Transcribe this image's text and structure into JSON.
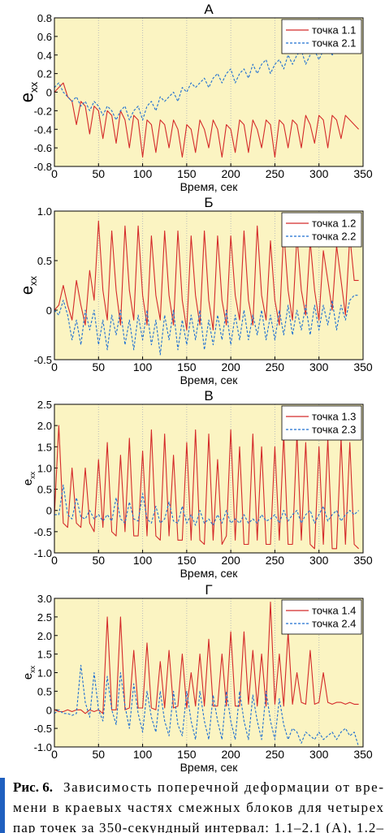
{
  "chart_data": [
    {
      "type": "line",
      "title": "А",
      "xlabel": "Время, сек",
      "ylabel": "e",
      "ylabel_sub": "xx",
      "x": [
        0,
        5,
        10,
        15,
        20,
        25,
        30,
        35,
        40,
        45,
        50,
        55,
        60,
        65,
        70,
        75,
        80,
        85,
        90,
        95,
        100,
        105,
        110,
        115,
        120,
        125,
        130,
        135,
        140,
        145,
        150,
        155,
        160,
        165,
        170,
        175,
        180,
        185,
        190,
        195,
        200,
        205,
        210,
        215,
        220,
        225,
        230,
        235,
        240,
        245,
        250,
        255,
        260,
        265,
        270,
        275,
        280,
        285,
        290,
        295,
        300,
        305,
        310,
        315,
        320,
        325,
        330,
        335,
        340,
        345
      ],
      "xlim": [
        0,
        350
      ],
      "xticks": [
        0,
        50,
        100,
        150,
        200,
        250,
        300,
        350
      ],
      "ylim": [
        -0.8,
        0.8
      ],
      "yticks": [
        -0.8,
        -0.6,
        -0.4,
        -0.2,
        0,
        0.2,
        0.4,
        0.6,
        0.8
      ],
      "grid": "x",
      "legend": "upper right",
      "background": "#fbf4c2",
      "series": [
        {
          "name": "точка 1.1",
          "color": "#d42a2a",
          "style": "solid",
          "values": [
            0.0,
            0.05,
            0.1,
            -0.05,
            -0.1,
            -0.35,
            -0.1,
            -0.15,
            -0.45,
            -0.15,
            -0.2,
            -0.5,
            -0.2,
            -0.25,
            -0.55,
            -0.2,
            -0.3,
            -0.6,
            -0.25,
            -0.3,
            -0.7,
            -0.3,
            -0.35,
            -0.65,
            -0.3,
            -0.35,
            -0.6,
            -0.3,
            -0.4,
            -0.7,
            -0.35,
            -0.4,
            -0.65,
            -0.3,
            -0.4,
            -0.6,
            -0.3,
            -0.4,
            -0.7,
            -0.35,
            -0.4,
            -0.65,
            -0.3,
            -0.35,
            -0.65,
            -0.3,
            -0.4,
            -0.6,
            -0.3,
            -0.35,
            -0.7,
            -0.3,
            -0.35,
            -0.6,
            -0.3,
            -0.35,
            -0.6,
            -0.25,
            -0.35,
            -0.55,
            -0.25,
            -0.3,
            -0.6,
            -0.25,
            -0.3,
            -0.5,
            -0.25,
            -0.3,
            -0.35,
            -0.4
          ]
        },
        {
          "name": "точка 2.1",
          "color": "#1f6fd1",
          "style": "dashed",
          "values": [
            0.05,
            0.1,
            0.0,
            -0.05,
            -0.1,
            -0.05,
            -0.15,
            -0.1,
            -0.2,
            -0.1,
            -0.15,
            -0.25,
            -0.15,
            -0.2,
            -0.3,
            -0.2,
            -0.15,
            -0.3,
            -0.2,
            -0.15,
            -0.3,
            -0.15,
            -0.1,
            -0.2,
            -0.05,
            -0.1,
            -0.05,
            0.0,
            -0.1,
            0.05,
            0.0,
            0.1,
            0.05,
            0.1,
            0.15,
            0.05,
            0.15,
            0.2,
            0.1,
            0.2,
            0.25,
            0.1,
            0.2,
            0.25,
            0.15,
            0.3,
            0.2,
            0.3,
            0.35,
            0.2,
            0.3,
            0.35,
            0.25,
            0.4,
            0.3,
            0.4,
            0.45,
            0.3,
            0.4,
            0.45,
            0.35,
            0.45,
            0.5,
            0.4,
            0.45,
            0.5,
            0.45,
            0.5,
            0.5,
            0.55
          ]
        }
      ]
    },
    {
      "type": "line",
      "title": "Б",
      "xlabel": "Время, сек",
      "ylabel": "e",
      "ylabel_sub": "xx",
      "x": [
        0,
        5,
        10,
        15,
        20,
        25,
        30,
        35,
        40,
        45,
        50,
        55,
        60,
        65,
        70,
        75,
        80,
        85,
        90,
        95,
        100,
        105,
        110,
        115,
        120,
        125,
        130,
        135,
        140,
        145,
        150,
        155,
        160,
        165,
        170,
        175,
        180,
        185,
        190,
        195,
        200,
        205,
        210,
        215,
        220,
        225,
        230,
        235,
        240,
        245,
        250,
        255,
        260,
        265,
        270,
        275,
        280,
        285,
        290,
        295,
        300,
        305,
        310,
        315,
        320,
        325,
        330,
        335,
        340,
        345
      ],
      "xlim": [
        0,
        350
      ],
      "xticks": [
        0,
        50,
        100,
        150,
        200,
        250,
        300,
        350
      ],
      "ylim": [
        -0.5,
        1
      ],
      "yticks": [
        -0.5,
        0,
        0.5,
        {
          "value": 1,
          "label": "1.0"
        }
      ],
      "grid": "x",
      "legend": "upper right",
      "background": "#fbf4c2",
      "series": [
        {
          "name": "точка 1.2",
          "color": "#d42a2a",
          "style": "solid",
          "values": [
            0,
            0.05,
            0.25,
            0.05,
            -0.1,
            0.3,
            0.05,
            -0.15,
            0.4,
            0.1,
            0.9,
            0.2,
            -0.1,
            0.8,
            0.2,
            -0.15,
            0.85,
            0.2,
            -0.1,
            0.85,
            0.15,
            -0.15,
            0.75,
            0.15,
            -0.1,
            0.8,
            0.15,
            -0.15,
            0.8,
            0.1,
            -0.2,
            0.75,
            0.15,
            -0.15,
            0.8,
            0.1,
            -0.2,
            0.75,
            0.1,
            -0.15,
            0.75,
            0.15,
            -0.1,
            0.8,
            0.1,
            -0.15,
            0.85,
            0.15,
            -0.1,
            0.7,
            0.1,
            -0.15,
            0.8,
            0.2,
            -0.1,
            0.75,
            0.2,
            -0.05,
            0.7,
            0.2,
            -0.1,
            0.6,
            0.3,
            0.0,
            0.65,
            0.3,
            -0.05,
            0.75,
            0.3,
            0.3
          ]
        },
        {
          "name": "точка 2.2",
          "color": "#1f6fd1",
          "style": "dashed",
          "values": [
            0,
            -0.05,
            0.1,
            -0.05,
            -0.3,
            -0.1,
            -0.35,
            0.0,
            -0.2,
            0.0,
            -0.35,
            -0.1,
            -0.4,
            -0.05,
            -0.25,
            0.0,
            -0.35,
            -0.1,
            -0.4,
            -0.05,
            -0.3,
            0.0,
            -0.35,
            -0.1,
            -0.45,
            -0.05,
            -0.3,
            0.0,
            -0.4,
            -0.1,
            -0.35,
            -0.05,
            -0.3,
            0.0,
            -0.4,
            -0.1,
            -0.35,
            -0.05,
            -0.3,
            0.0,
            -0.35,
            -0.05,
            -0.3,
            0.0,
            -0.3,
            -0.05,
            -0.25,
            0.0,
            -0.3,
            -0.05,
            -0.3,
            0.0,
            -0.25,
            0.05,
            -0.25,
            0.0,
            -0.2,
            0.05,
            -0.25,
            0.05,
            -0.2,
            0.05,
            -0.15,
            0.1,
            -0.2,
            0.05,
            -0.1,
            0.1,
            0.15,
            0.15
          ]
        }
      ]
    },
    {
      "type": "line",
      "title": "В",
      "xlabel": "Время, сек",
      "ylabel": "e",
      "ylabel_sub": "xx",
      "x": [
        0,
        5,
        10,
        15,
        20,
        25,
        30,
        35,
        40,
        45,
        50,
        55,
        60,
        65,
        70,
        75,
        80,
        85,
        90,
        95,
        100,
        105,
        110,
        115,
        120,
        125,
        130,
        135,
        140,
        145,
        150,
        155,
        160,
        165,
        170,
        175,
        180,
        185,
        190,
        195,
        200,
        205,
        210,
        215,
        220,
        225,
        230,
        235,
        240,
        245,
        250,
        255,
        260,
        265,
        270,
        275,
        280,
        285,
        290,
        295,
        300,
        305,
        310,
        315,
        320,
        325,
        330,
        335,
        340,
        345
      ],
      "xlim": [
        0,
        350
      ],
      "xticks": [
        0,
        50,
        100,
        150,
        200,
        250,
        300,
        350
      ],
      "ylim": [
        -1,
        2.5
      ],
      "yticks": [
        {
          "value": -1,
          "label": "-1.0"
        },
        -0.5,
        0,
        0.5,
        {
          "value": 1,
          "label": "1.0"
        },
        1.5,
        {
          "value": 2,
          "label": "2.0"
        },
        2.5
      ],
      "grid": "x",
      "legend": "upper right",
      "background": "#fbf4c2",
      "series": [
        {
          "name": "точка 1.3",
          "color": "#d42a2a",
          "style": "solid",
          "values": [
            -0.1,
            2.0,
            -0.3,
            -0.4,
            1.0,
            -0.3,
            -0.4,
            1.0,
            -0.3,
            -0.5,
            1.2,
            -0.4,
            1.6,
            -0.5,
            -0.6,
            1.3,
            -0.5,
            1.7,
            -0.6,
            -0.6,
            1.4,
            -0.6,
            1.9,
            -0.6,
            -0.7,
            1.8,
            -0.6,
            1.3,
            -0.7,
            -0.7,
            1.6,
            -0.7,
            1.9,
            -0.7,
            -0.8,
            1.8,
            -0.7,
            1.2,
            -0.8,
            -0.6,
            1.9,
            -0.7,
            1.5,
            -0.8,
            -0.8,
            1.8,
            -0.7,
            1.5,
            -0.8,
            -0.8,
            1.5,
            -0.7,
            1.8,
            -0.8,
            -0.8,
            1.8,
            -0.7,
            1.6,
            -0.8,
            -0.9,
            1.5,
            -0.8,
            1.7,
            -0.9,
            -0.9,
            1.7,
            -0.8,
            1.6,
            -0.8,
            -0.9
          ]
        },
        {
          "name": "точка 2.3",
          "color": "#1f6fd1",
          "style": "dashed",
          "values": [
            -0.1,
            -0.1,
            0.6,
            -0.1,
            -0.2,
            0.3,
            -0.15,
            -0.2,
            0.0,
            -0.2,
            -0.1,
            -0.25,
            -0.1,
            -0.25,
            0.3,
            -0.2,
            -0.3,
            0.2,
            -0.2,
            -0.25,
            0.4,
            -0.2,
            -0.3,
            0.1,
            -0.3,
            -0.2,
            0.2,
            -0.25,
            -0.3,
            0.1,
            -0.3,
            -0.1,
            -0.35,
            0.0,
            -0.3,
            -0.2,
            -0.35,
            -0.1,
            -0.3,
            0.0,
            -0.3,
            -0.2,
            -0.3,
            -0.1,
            -0.3,
            -0.2,
            -0.3,
            -0.1,
            -0.25,
            -0.2,
            -0.1,
            -0.3,
            0.0,
            -0.25,
            -0.1,
            0.0,
            -0.3,
            -0.1,
            0.0,
            -0.3,
            -0.1,
            0.1,
            -0.25,
            -0.1,
            0.0,
            -0.25,
            -0.1,
            0.0,
            -0.1,
            0.0
          ]
        }
      ]
    },
    {
      "type": "line",
      "title": "Г",
      "xlabel": "Время, сек",
      "ylabel": "e",
      "ylabel_sub": "xx",
      "x": [
        0,
        5,
        10,
        15,
        20,
        25,
        30,
        35,
        40,
        45,
        50,
        55,
        60,
        65,
        70,
        75,
        80,
        85,
        90,
        95,
        100,
        105,
        110,
        115,
        120,
        125,
        130,
        135,
        140,
        145,
        150,
        155,
        160,
        165,
        170,
        175,
        180,
        185,
        190,
        195,
        200,
        205,
        210,
        215,
        220,
        225,
        230,
        235,
        240,
        245,
        250,
        255,
        260,
        265,
        270,
        275,
        280,
        285,
        290,
        295,
        300,
        305,
        310,
        315,
        320,
        325,
        330,
        335,
        340,
        345
      ],
      "xlim": [
        0,
        350
      ],
      "xticks": [
        0,
        50,
        100,
        150,
        200,
        250,
        300,
        350
      ],
      "ylim": [
        -1,
        3
      ],
      "yticks": [
        {
          "value": -1,
          "label": "-1.0"
        },
        -0.5,
        0,
        0.5,
        {
          "value": 1,
          "label": "1.0"
        },
        1.5,
        {
          "value": 2,
          "label": "2.0"
        },
        2.5,
        {
          "value": 3,
          "label": "3.0"
        }
      ],
      "grid": "x",
      "legend": "upper right",
      "background": "#fbf4c2",
      "series": [
        {
          "name": "точка 1.4",
          "color": "#d42a2a",
          "style": "solid",
          "values": [
            0,
            -0.05,
            -0.05,
            0.0,
            -0.05,
            0.0,
            0.0,
            -0.1,
            0.0,
            -0.05,
            0.0,
            -0.1,
            2.5,
            0.0,
            0.0,
            2.5,
            0.0,
            0.05,
            1.6,
            0.05,
            0.05,
            1.8,
            0.05,
            0.0,
            1.3,
            0.05,
            1.6,
            0.05,
            0.1,
            1.5,
            0.05,
            1.0,
            0.1,
            1.5,
            0.1,
            1.9,
            0.1,
            0.1,
            1.5,
            0.1,
            2.1,
            0.1,
            0.1,
            2.1,
            0.15,
            1.6,
            0.1,
            1.5,
            0.1,
            2.9,
            0.15,
            1.5,
            0.1,
            2.1,
            0.15,
            1.0,
            0.2,
            0.15,
            1.6,
            0.15,
            0.2,
            1.0,
            0.2,
            0.15,
            0.2,
            0.2,
            0.15,
            0.2,
            0.15,
            0.15
          ]
        },
        {
          "name": "точка 2.4",
          "color": "#1f6fd1",
          "style": "dashed",
          "values": [
            -0.1,
            0.0,
            -0.1,
            -0.1,
            -0.15,
            -0.1,
            1.2,
            0.2,
            -0.2,
            1.0,
            0.0,
            -0.3,
            0.9,
            0.0,
            -0.4,
            1.0,
            0.1,
            -0.5,
            0.7,
            -0.1,
            -0.6,
            0.5,
            -0.2,
            -0.6,
            0.5,
            -0.3,
            -0.7,
            0.5,
            -0.4,
            -0.7,
            0.5,
            -0.3,
            -0.8,
            0.5,
            -0.3,
            -0.8,
            0.4,
            -0.3,
            -0.8,
            0.5,
            -0.3,
            -0.8,
            0.5,
            -0.3,
            -0.8,
            0.4,
            -0.3,
            -0.8,
            0.5,
            -0.3,
            -0.8,
            0.3,
            -0.4,
            -0.8,
            -0.5,
            -0.6,
            -0.9,
            -0.6,
            -0.7,
            -0.8,
            -0.6,
            -0.8,
            -0.7,
            -0.6,
            -0.8,
            -0.6,
            -0.5,
            -0.7,
            -0.6,
            -1.0
          ]
        }
      ]
    }
  ],
  "caption": {
    "label": "Рис. 6.",
    "lines": [
      "Зависимость поперечной деформации от вре-",
      "мени в краевых частях смежных блоков для четырех",
      "пар точек за 350-секундный интервал: 1.1–2.1 (А), 1.2–"
    ]
  }
}
